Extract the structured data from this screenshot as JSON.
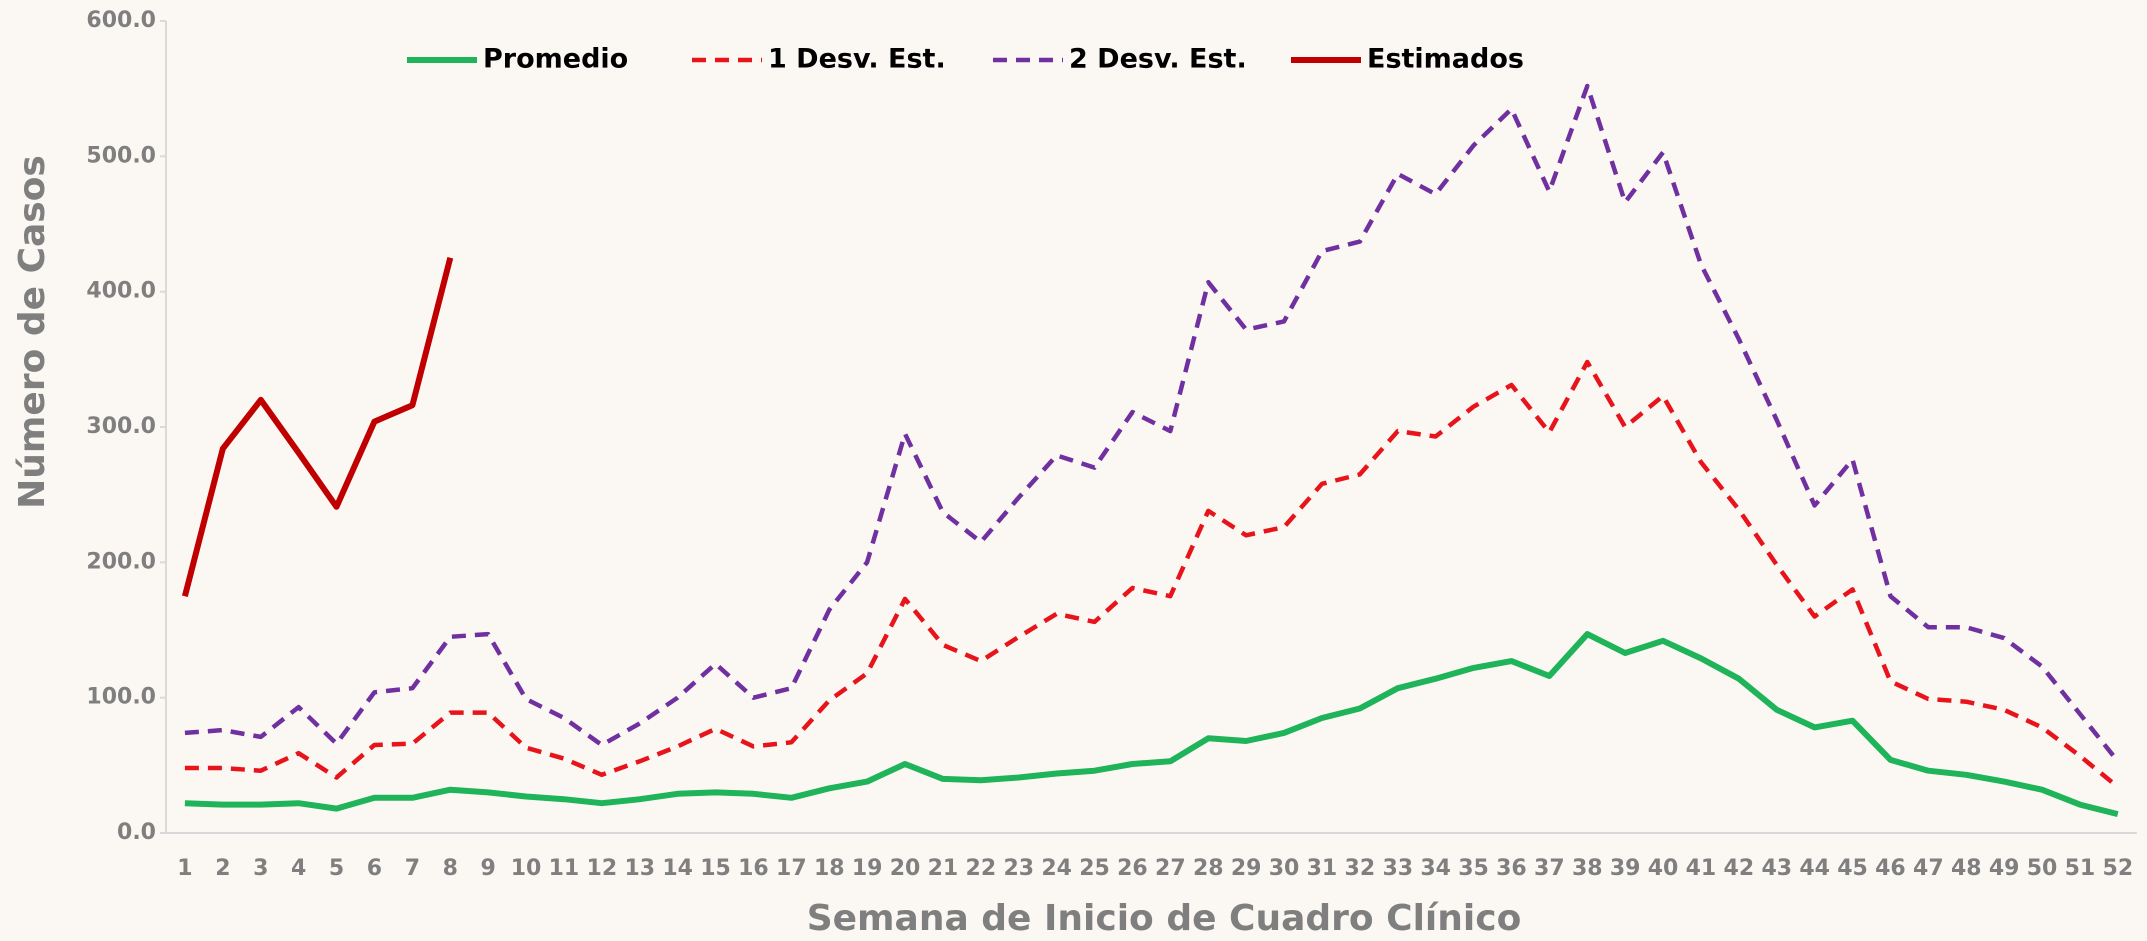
{
  "chart_data": {
    "type": "line",
    "x_label": "Semana de Inicio de Cuadro Clínico",
    "y_label": "Número de Casos",
    "categories": [
      "1",
      "2",
      "3",
      "4",
      "5",
      "6",
      "7",
      "8",
      "9",
      "10",
      "11",
      "12",
      "13",
      "14",
      "15",
      "16",
      "17",
      "18",
      "19",
      "20",
      "21",
      "22",
      "23",
      "24",
      "25",
      "26",
      "27",
      "28",
      "29",
      "30",
      "31",
      "32",
      "33",
      "34",
      "35",
      "36",
      "37",
      "38",
      "39",
      "40",
      "41",
      "42",
      "43",
      "44",
      "45",
      "46",
      "47",
      "48",
      "49",
      "50",
      "51",
      "52"
    ],
    "ylim": [
      0,
      600
    ],
    "yticks": [
      {
        "value": 0,
        "label": "0.0"
      },
      {
        "value": 100,
        "label": "100.0"
      },
      {
        "value": 200,
        "label": "200.0"
      },
      {
        "value": 300,
        "label": "300.0"
      },
      {
        "value": 400,
        "label": "400.0"
      },
      {
        "value": 500,
        "label": "500.0"
      },
      {
        "value": 600,
        "label": "600.0"
      }
    ],
    "grid": false,
    "legend": "top",
    "series": [
      {
        "name": "Promedio",
        "color": "#1fb35a",
        "dashed": false,
        "values": [
          22,
          21,
          21,
          22,
          18,
          26,
          26,
          32,
          30,
          27,
          25,
          22,
          25,
          29,
          30,
          29,
          26,
          33,
          38,
          51,
          40,
          39,
          41,
          44,
          46,
          51,
          53,
          70,
          68,
          74,
          85,
          92,
          107,
          114,
          122,
          127,
          116,
          147,
          133,
          142,
          129,
          114,
          91,
          78,
          83,
          54,
          46,
          43,
          38,
          32,
          21,
          14
        ]
      },
      {
        "name": "1 Desv. Est.",
        "color": "#e8141b",
        "dashed": true,
        "values": [
          48,
          48,
          46,
          59,
          41,
          65,
          66,
          89,
          89,
          63,
          55,
          43,
          53,
          64,
          77,
          64,
          67,
          98,
          118,
          173,
          139,
          127,
          145,
          162,
          156,
          181,
          175,
          238,
          220,
          226,
          258,
          265,
          297,
          293,
          315,
          331,
          296,
          348,
          300,
          323,
          274,
          239,
          198,
          160,
          180,
          112,
          99,
          97,
          91,
          78,
          57,
          34
        ]
      },
      {
        "name": "2 Desv. Est.",
        "color": "#7030a0",
        "dashed": true,
        "values": [
          74,
          76,
          71,
          93,
          66,
          104,
          107,
          145,
          147,
          99,
          85,
          65,
          81,
          100,
          125,
          100,
          107,
          165,
          200,
          295,
          237,
          215,
          248,
          279,
          270,
          311,
          297,
          407,
          372,
          378,
          430,
          437,
          487,
          472,
          508,
          535,
          474,
          552,
          466,
          503,
          420,
          365,
          305,
          242,
          276,
          175,
          152,
          152,
          144,
          123,
          88,
          53
        ]
      },
      {
        "name": "Estimados",
        "color": "#c00000",
        "dashed": false,
        "values": [
          175,
          284,
          320,
          281,
          241,
          304,
          316,
          425,
          null,
          null,
          null,
          null,
          null,
          null,
          null,
          null,
          null,
          null,
          null,
          null,
          null,
          null,
          null,
          null,
          null,
          null,
          null,
          null,
          null,
          null,
          null,
          null,
          null,
          null,
          null,
          null,
          null,
          null,
          null,
          null,
          null,
          null,
          null,
          null,
          null,
          null,
          null,
          null,
          null,
          null,
          null,
          null
        ]
      }
    ]
  }
}
